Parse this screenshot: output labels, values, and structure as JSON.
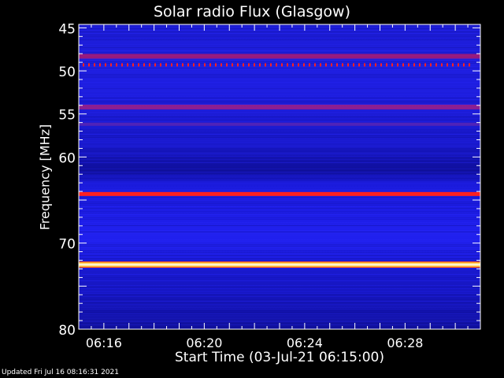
{
  "chart_data": {
    "type": "heatmap",
    "title": "Solar radio Flux (Glasgow)",
    "xlabel": "Start Time (03-Jul-21 06:15:00)",
    "ylabel": "Frequency [MHz]",
    "updated": "Updated Fri Jul 16 08:16:31 2021",
    "x_ticks": [
      "06:16",
      "06:20",
      "06:24",
      "06:28"
    ],
    "x_tick_minutes": [
      16,
      20,
      24,
      28
    ],
    "x_range_minutes": [
      15,
      31
    ],
    "y_ticks": [
      45,
      50,
      55,
      60,
      70,
      80
    ],
    "y_range_mhz": [
      44.6,
      80
    ],
    "background_color": "#1a1ae6",
    "bands": [
      {
        "freq_mhz": 48.3,
        "color": "#c01a60",
        "intensity": "medium"
      },
      {
        "freq_mhz": 49.3,
        "color": "#ff2020",
        "intensity": "dashed-high"
      },
      {
        "freq_mhz": 54.2,
        "color": "#b0207a",
        "intensity": "medium"
      },
      {
        "freq_mhz": 56.2,
        "color": "#7a2aa0",
        "intensity": "low"
      },
      {
        "freq_mhz": 64.3,
        "color": "#ff2020",
        "intensity": "high"
      },
      {
        "freq_mhz": 72.5,
        "color": "#ffffc0",
        "intensity": "saturated"
      }
    ]
  }
}
